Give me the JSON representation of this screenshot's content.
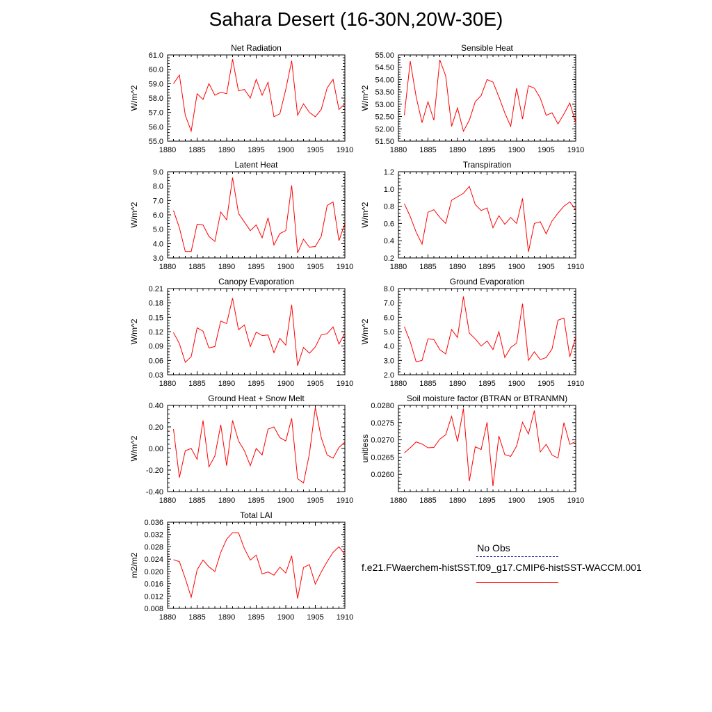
{
  "title": "Sahara Desert (16-30N,20W-30E)",
  "legend": {
    "obs_label": "No Obs",
    "model_label": "f.e21.FWaerchem-histSST.f09_g17.CMIP6-histSST-WACCM.001",
    "obs_color": "#1f2a9c",
    "model_color": "#ff0000"
  },
  "chart_data": [
    {
      "type": "line",
      "title": "Net Radiation",
      "ylabel": "W/m^2",
      "xlim": [
        1880,
        1910
      ],
      "xticks": [
        1880,
        1885,
        1890,
        1895,
        1900,
        1905,
        1910
      ],
      "ylim": [
        55.0,
        61.0
      ],
      "yticks": [
        "55.0",
        "56.0",
        "57.0",
        "58.0",
        "59.0",
        "60.0",
        "61.0"
      ],
      "x": [
        1881,
        1882,
        1883,
        1884,
        1885,
        1886,
        1887,
        1888,
        1889,
        1890,
        1891,
        1892,
        1893,
        1894,
        1895,
        1896,
        1897,
        1898,
        1899,
        1900,
        1901,
        1902,
        1903,
        1904,
        1905,
        1906,
        1907,
        1908,
        1909,
        1910
      ],
      "series": [
        {
          "values": [
            59.0,
            59.6,
            56.8,
            55.7,
            58.3,
            57.9,
            59.0,
            58.2,
            58.4,
            58.3,
            60.7,
            58.5,
            58.6,
            58.0,
            59.3,
            58.2,
            59.1,
            56.7,
            56.9,
            58.6,
            60.6,
            56.8,
            57.6,
            57.0,
            56.7,
            57.2,
            58.7,
            59.3,
            57.2,
            57.6
          ]
        }
      ]
    },
    {
      "type": "line",
      "title": "Sensible Heat",
      "ylabel": "W/m^2",
      "xlim": [
        1880,
        1910
      ],
      "xticks": [
        1880,
        1885,
        1890,
        1895,
        1900,
        1905,
        1910
      ],
      "ylim": [
        51.5,
        55.0
      ],
      "yticks": [
        "51.50",
        "52.00",
        "52.50",
        "53.00",
        "53.50",
        "54.00",
        "54.50",
        "55.00"
      ],
      "x": [
        1881,
        1882,
        1883,
        1884,
        1885,
        1886,
        1887,
        1888,
        1889,
        1890,
        1891,
        1892,
        1893,
        1894,
        1895,
        1896,
        1897,
        1898,
        1899,
        1900,
        1901,
        1902,
        1903,
        1904,
        1905,
        1906,
        1907,
        1908,
        1909,
        1910
      ],
      "series": [
        {
          "values": [
            52.55,
            54.75,
            53.3,
            52.25,
            53.1,
            52.35,
            54.8,
            54.15,
            52.1,
            52.85,
            51.9,
            52.35,
            53.1,
            53.35,
            54.0,
            53.9,
            53.3,
            52.65,
            52.1,
            53.65,
            52.4,
            53.75,
            53.65,
            53.25,
            52.55,
            52.65,
            52.2,
            52.6,
            53.05,
            52.25
          ]
        }
      ]
    },
    {
      "type": "line",
      "title": "Latent Heat",
      "ylabel": "W/m^2",
      "xlim": [
        1880,
        1910
      ],
      "xticks": [
        1880,
        1885,
        1890,
        1895,
        1900,
        1905,
        1910
      ],
      "ylim": [
        3.0,
        9.0
      ],
      "yticks": [
        "3.0",
        "4.0",
        "5.0",
        "6.0",
        "7.0",
        "8.0",
        "9.0"
      ],
      "x": [
        1881,
        1882,
        1883,
        1884,
        1885,
        1886,
        1887,
        1888,
        1889,
        1890,
        1891,
        1892,
        1893,
        1894,
        1895,
        1896,
        1897,
        1898,
        1899,
        1900,
        1901,
        1902,
        1903,
        1904,
        1905,
        1906,
        1907,
        1908,
        1909,
        1910
      ],
      "series": [
        {
          "values": [
            6.3,
            5.1,
            3.45,
            3.45,
            5.35,
            5.3,
            4.5,
            4.15,
            6.2,
            5.65,
            8.6,
            6.1,
            5.5,
            4.9,
            5.3,
            4.4,
            5.8,
            3.9,
            4.7,
            4.9,
            8.05,
            3.35,
            4.3,
            3.75,
            3.8,
            4.5,
            6.65,
            6.9,
            4.2,
            5.4
          ]
        }
      ]
    },
    {
      "type": "line",
      "title": "Transpiration",
      "ylabel": "W/m^2",
      "xlim": [
        1880,
        1910
      ],
      "xticks": [
        1880,
        1885,
        1890,
        1895,
        1900,
        1905,
        1910
      ],
      "ylim": [
        0.2,
        1.2
      ],
      "yticks": [
        "0.2",
        "0.4",
        "0.6",
        "0.8",
        "1.0",
        "1.2"
      ],
      "x": [
        1881,
        1882,
        1883,
        1884,
        1885,
        1886,
        1887,
        1888,
        1889,
        1890,
        1891,
        1892,
        1893,
        1894,
        1895,
        1896,
        1897,
        1898,
        1899,
        1900,
        1901,
        1902,
        1903,
        1904,
        1905,
        1906,
        1907,
        1908,
        1909,
        1910
      ],
      "series": [
        {
          "values": [
            0.83,
            0.68,
            0.5,
            0.36,
            0.73,
            0.76,
            0.67,
            0.6,
            0.87,
            0.91,
            0.95,
            1.03,
            0.82,
            0.75,
            0.78,
            0.55,
            0.69,
            0.59,
            0.67,
            0.6,
            0.89,
            0.27,
            0.6,
            0.62,
            0.48,
            0.63,
            0.72,
            0.8,
            0.85,
            0.76
          ]
        }
      ]
    },
    {
      "type": "line",
      "title": "Canopy Evaporation",
      "ylabel": "W/m^2",
      "xlim": [
        1880,
        1910
      ],
      "xticks": [
        1880,
        1885,
        1890,
        1895,
        1900,
        1905,
        1910
      ],
      "ylim": [
        0.03,
        0.21
      ],
      "yticks": [
        "0.03",
        "0.06",
        "0.09",
        "0.12",
        "0.15",
        "0.18",
        "0.21"
      ],
      "x": [
        1881,
        1882,
        1883,
        1884,
        1885,
        1886,
        1887,
        1888,
        1889,
        1890,
        1891,
        1892,
        1893,
        1894,
        1895,
        1896,
        1897,
        1898,
        1899,
        1900,
        1901,
        1902,
        1903,
        1904,
        1905,
        1906,
        1907,
        1908,
        1909,
        1910
      ],
      "series": [
        {
          "values": [
            0.118,
            0.095,
            0.056,
            0.068,
            0.128,
            0.121,
            0.086,
            0.089,
            0.142,
            0.137,
            0.19,
            0.124,
            0.134,
            0.089,
            0.119,
            0.112,
            0.113,
            0.076,
            0.106,
            0.092,
            0.176,
            0.049,
            0.087,
            0.075,
            0.088,
            0.113,
            0.116,
            0.13,
            0.094,
            0.117
          ]
        }
      ]
    },
    {
      "type": "line",
      "title": "Ground Evaporation",
      "ylabel": "W/m^2",
      "xlim": [
        1880,
        1910
      ],
      "xticks": [
        1880,
        1885,
        1890,
        1895,
        1900,
        1905,
        1910
      ],
      "ylim": [
        2.0,
        8.0
      ],
      "yticks": [
        "2.0",
        "3.0",
        "4.0",
        "5.0",
        "6.0",
        "7.0",
        "8.0"
      ],
      "x": [
        1881,
        1882,
        1883,
        1884,
        1885,
        1886,
        1887,
        1888,
        1889,
        1890,
        1891,
        1892,
        1893,
        1894,
        1895,
        1896,
        1897,
        1898,
        1899,
        1900,
        1901,
        1902,
        1903,
        1904,
        1905,
        1906,
        1907,
        1908,
        1909,
        1910
      ],
      "series": [
        {
          "values": [
            5.35,
            4.3,
            2.9,
            3.0,
            4.5,
            4.45,
            3.75,
            3.45,
            5.15,
            4.6,
            7.45,
            4.9,
            4.5,
            4.0,
            4.35,
            3.75,
            5.0,
            3.2,
            3.9,
            4.2,
            6.95,
            3.0,
            3.6,
            3.05,
            3.2,
            3.8,
            5.8,
            5.95,
            3.25,
            4.6
          ]
        }
      ]
    },
    {
      "type": "line",
      "title": "Ground Heat + Snow Melt",
      "ylabel": "W/m^2",
      "xlim": [
        1880,
        1910
      ],
      "xticks": [
        1880,
        1885,
        1890,
        1895,
        1900,
        1905,
        1910
      ],
      "ylim": [
        -0.4,
        0.4
      ],
      "yticks": [
        "-0.40",
        "-0.20",
        "0.00",
        "0.20",
        "0.40"
      ],
      "x": [
        1881,
        1882,
        1883,
        1884,
        1885,
        1886,
        1887,
        1888,
        1889,
        1890,
        1891,
        1892,
        1893,
        1894,
        1895,
        1896,
        1897,
        1898,
        1899,
        1900,
        1901,
        1902,
        1903,
        1904,
        1905,
        1906,
        1907,
        1908,
        1909,
        1910
      ],
      "series": [
        {
          "values": [
            0.18,
            -0.27,
            -0.02,
            0.0,
            -0.1,
            0.26,
            -0.17,
            -0.07,
            0.22,
            -0.16,
            0.26,
            0.07,
            -0.02,
            -0.16,
            0.0,
            -0.06,
            0.18,
            0.2,
            0.1,
            0.07,
            0.28,
            -0.28,
            -0.32,
            -0.05,
            0.38,
            0.1,
            -0.06,
            -0.09,
            0.01,
            0.06
          ]
        }
      ]
    },
    {
      "type": "line",
      "title": "Soil moisture factor (BTRAN or BTRANMN)",
      "ylabel": "unitless",
      "xlim": [
        1880,
        1910
      ],
      "xticks": [
        1880,
        1885,
        1890,
        1895,
        1900,
        1905,
        1910
      ],
      "ylim": [
        0.0255,
        0.028
      ],
      "yticks": [
        "",
        "0.0260",
        "0.0265",
        "0.0270",
        "0.0275",
        "0.0280"
      ],
      "x": [
        1881,
        1882,
        1883,
        1884,
        1885,
        1886,
        1887,
        1888,
        1889,
        1890,
        1891,
        1892,
        1893,
        1894,
        1895,
        1896,
        1897,
        1898,
        1899,
        1900,
        1901,
        1902,
        1903,
        1904,
        1905,
        1906,
        1907,
        1908,
        1909,
        1910
      ],
      "series": [
        {
          "values": [
            0.02662,
            0.02677,
            0.02694,
            0.02688,
            0.02677,
            0.02678,
            0.02702,
            0.02715,
            0.02768,
            0.02695,
            0.02791,
            0.0258,
            0.0268,
            0.02672,
            0.02751,
            0.02566,
            0.02711,
            0.02657,
            0.02652,
            0.02682,
            0.02751,
            0.02717,
            0.02785,
            0.02665,
            0.02687,
            0.02656,
            0.02647,
            0.0275,
            0.02687,
            0.02695
          ]
        }
      ]
    },
    {
      "type": "line",
      "title": "Total LAI",
      "ylabel": "m2/m2",
      "xlim": [
        1880,
        1910
      ],
      "xticks": [
        1880,
        1885,
        1890,
        1895,
        1900,
        1905,
        1910
      ],
      "ylim": [
        0.008,
        0.036
      ],
      "yticks": [
        "0.008",
        "0.012",
        "0.016",
        "0.020",
        "0.024",
        "0.028",
        "0.032",
        "0.036"
      ],
      "x": [
        1881,
        1882,
        1883,
        1884,
        1885,
        1886,
        1887,
        1888,
        1889,
        1890,
        1891,
        1892,
        1893,
        1894,
        1895,
        1896,
        1897,
        1898,
        1899,
        1900,
        1901,
        1902,
        1903,
        1904,
        1905,
        1906,
        1907,
        1908,
        1909,
        1910
      ],
      "series": [
        {
          "values": [
            0.0238,
            0.0232,
            0.0177,
            0.0116,
            0.0205,
            0.0237,
            0.0215,
            0.02,
            0.0262,
            0.0305,
            0.0326,
            0.0326,
            0.0274,
            0.0237,
            0.0253,
            0.0192,
            0.0198,
            0.0188,
            0.0214,
            0.0195,
            0.0251,
            0.0112,
            0.0213,
            0.0222,
            0.0159,
            0.0198,
            0.0232,
            0.0262,
            0.028,
            0.0255
          ]
        }
      ]
    }
  ]
}
